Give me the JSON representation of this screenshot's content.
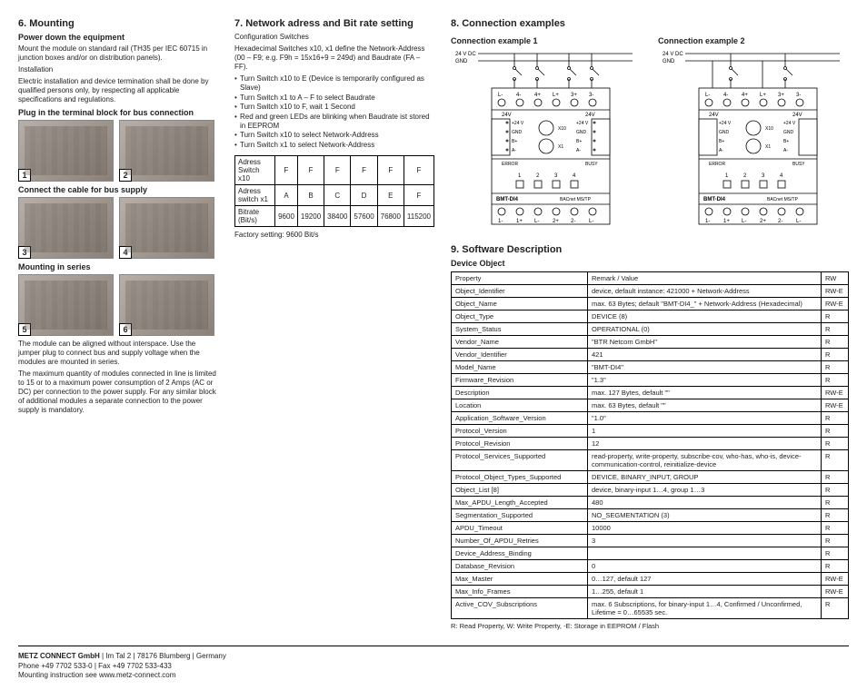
{
  "col1": {
    "h": "6. Mounting",
    "s1": "Power down the equipment",
    "p1": "Mount the module on standard rail (TH35 per IEC 60715 in junction boxes and/or on distribution panels).",
    "p2": "Installation",
    "p3": "Electric installation and device termination shall be done by qualified persons only, by respecting all applicable specifications and regulations.",
    "s2": "Plug in the terminal block for bus connection",
    "s3": "Connect the cable for bus supply",
    "s4": "Mounting in series",
    "p4": "The module can be aligned without interspace. Use the jumper plug to connect bus and supply voltage when the modules are mounted in series.",
    "p5": "The maximum quantity of modules connected in line is limited to 15 or to a maximum power consumption of 2 Amps (AC or DC) per connection to the power supply. For any similar block of additional modules a separate connection to the power supply is mandatory.",
    "n": [
      "1",
      "2",
      "3",
      "4",
      "5",
      "6"
    ]
  },
  "col2": {
    "h": "7. Network adress and Bit rate setting",
    "p1": "Configuration Switches",
    "p2": "Hexadecimal Switches x10, x1 define the Network-Address (00 – F9; e.g. F9h = 15x16+9 = 249d) and Baudrate (FA – FF).",
    "li": [
      "Turn Switch x10 to E (Device is temporarily configured as Slave)",
      "Turn Switch x1 to A – F to select Baudrate",
      "Turn Switch x10 to F, wait 1 Second",
      "Red and green LEDs are blinking when Baudrate ist stored in EEPROM",
      "Turn Switch x10 to select Network-Address",
      "Turn Switch x1 to select Network-Address"
    ],
    "thead": [
      "Adress Switch x10",
      "F",
      "F",
      "F",
      "F",
      "F",
      "F"
    ],
    "r1": [
      "Adress switch x1",
      "A",
      "B",
      "C",
      "D",
      "E",
      "F"
    ],
    "r2": [
      "Bitrate (Bit/s)",
      "9600",
      "19200",
      "38400",
      "57600",
      "76800",
      "115200"
    ],
    "fs": "Factory setting: 9600 Bit/s"
  },
  "conn": {
    "h": "8. Connection examples",
    "e1": "Connection example 1",
    "e2": "Connection example 2",
    "vdc": "24 V DC",
    "gnd": "GND",
    "top": [
      "L-",
      "4-",
      "4+",
      "L+",
      "3+",
      "3-"
    ],
    "lbl24v": "24V",
    "lside": [
      "+24 V",
      "GND",
      "B+",
      "A-"
    ],
    "rside": [
      "+24 V",
      "GND",
      "B+",
      "A-"
    ],
    "x10": "X10",
    "x1": "X1",
    "err": "ERROR",
    "busy": "BUSY",
    "nums": [
      "1",
      "2",
      "3",
      "4"
    ],
    "name": "BMT-DI4",
    "proto": "BACnet MS/TP",
    "bot": [
      "1-",
      "1+",
      "L-",
      "2+",
      "2-",
      "L-"
    ]
  },
  "soft": {
    "h": "9. Software Description",
    "sub": "Device Object",
    "hdr": [
      "Property",
      "Remark / Value",
      "RW"
    ],
    "rows": [
      [
        "Object_Identifier",
        "device, default instance: 421000 + Network-Address",
        "RW-E"
      ],
      [
        "Object_Name",
        "max. 63 Bytes;\ndefault \"BMT-DI4_\" + Network-Address (Hexadecimal)",
        "RW-E"
      ],
      [
        "Object_Type",
        "DEVICE (8)",
        "R"
      ],
      [
        "System_Status",
        "OPERATIONAL (0)",
        "R"
      ],
      [
        "Vendor_Name",
        "\"BTR Netcom GmbH\"",
        "R"
      ],
      [
        "Vendor_Identifier",
        "421",
        "R"
      ],
      [
        "Model_Name",
        "\"BMT-DI4\"",
        "R"
      ],
      [
        "Firmware_Revision",
        "\"1.3\"",
        "R"
      ],
      [
        "Description",
        "max. 127 Bytes, default \"\"",
        "RW-E"
      ],
      [
        "Location",
        "max. 63 Bytes, default \"\"",
        "RW-E"
      ],
      [
        "Application_Software_Version",
        "\"1.0\"",
        "R"
      ],
      [
        "Protocol_Version",
        "1",
        "R"
      ],
      [
        "Protocol_Revision",
        "12",
        "R"
      ],
      [
        "Protocol_Services_Supported",
        "read-property, write-property, subscribe-cov, who-has, who-is, device-communication-control, reinitialize-device",
        "R"
      ],
      [
        "Protocol_Object_Types_Supported",
        "DEVICE, BINARY_INPUT, GROUP",
        "R"
      ],
      [
        "Object_List [8]",
        "device, binary-input 1…4, group 1…3",
        "R"
      ],
      [
        "Max_APDU_Length_Accepted",
        "480",
        "R"
      ],
      [
        "Segmentation_Supported",
        "NO_SEGMENTATION (3)",
        "R"
      ],
      [
        "APDU_Timeout",
        "10000",
        "R"
      ],
      [
        "Number_Of_APDU_Retries",
        "3",
        "R"
      ],
      [
        "Device_Address_Binding",
        "",
        "R"
      ],
      [
        "Database_Revision",
        "0",
        "R"
      ],
      [
        "Max_Master",
        "0…127, default 127",
        "RW-E"
      ],
      [
        "Max_Info_Frames",
        "1…255, default 1",
        "RW-E"
      ],
      [
        "Active_COV_Subscriptions",
        "max. 6 Subscriptions, for binary-input 1…4,\nConfirmed / Unconfirmed, Lifetime = 0…65535 sec.",
        "R"
      ]
    ],
    "note": "R: Read Property,   W: Write Property,   -E: Storage in EEPROM / Flash"
  },
  "footer": {
    "l1a": "METZ CONNECT GmbH",
    "l1b": " | Im Tal 2 | 78176 Blumberg | Germany",
    "l2": "Phone +49 7702 533-0 | Fax +49 7702 533-433",
    "l3": "Mounting instruction see www.metz-connect.com"
  }
}
